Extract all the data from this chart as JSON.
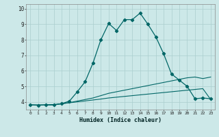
{
  "xlabel": "Humidex (Indice chaleur)",
  "background_color": "#cce8e8",
  "grid_color": "#aacece",
  "line_color": "#006666",
  "xlim": [
    -0.5,
    23.5
  ],
  "ylim": [
    3.5,
    10.3
  ],
  "xtick_vals": [
    0,
    1,
    2,
    3,
    4,
    5,
    6,
    7,
    8,
    9,
    10,
    11,
    12,
    13,
    14,
    15,
    16,
    17,
    18,
    19,
    20,
    21,
    22,
    23
  ],
  "xtick_labels": [
    "0",
    "1",
    "2",
    "3",
    "4",
    "5",
    "6",
    "7",
    "8",
    "9",
    "10",
    "11",
    "12",
    "13",
    "14",
    "15",
    "16",
    "17",
    "18",
    "19",
    "20",
    "21",
    "22",
    "23"
  ],
  "ytick_vals": [
    4,
    5,
    6,
    7,
    8,
    9,
    10
  ],
  "ytick_labels": [
    "4",
    "5",
    "6",
    "7",
    "8",
    "9",
    "10"
  ],
  "line1_x": [
    0,
    1,
    2,
    3,
    4,
    5,
    6,
    7,
    8,
    9,
    10,
    11,
    12,
    13,
    14,
    15,
    16,
    17,
    18,
    19,
    20,
    21,
    22,
    23
  ],
  "line1_y": [
    3.8,
    3.78,
    3.8,
    3.8,
    3.88,
    4.05,
    4.65,
    5.3,
    6.5,
    8.0,
    9.05,
    8.6,
    9.3,
    9.3,
    9.72,
    9.0,
    8.2,
    7.1,
    5.8,
    5.4,
    5.0,
    4.2,
    4.25,
    4.2
  ],
  "line2_x": [
    0,
    1,
    2,
    3,
    4,
    5,
    6,
    7,
    8,
    9,
    10,
    11,
    12,
    13,
    14,
    15,
    16,
    17,
    18,
    19,
    20,
    21,
    22,
    23
  ],
  "line2_y": [
    3.8,
    3.8,
    3.8,
    3.82,
    3.88,
    3.94,
    4.0,
    4.06,
    4.12,
    4.18,
    4.25,
    4.3,
    4.35,
    4.4,
    4.45,
    4.5,
    4.55,
    4.6,
    4.65,
    4.7,
    4.75,
    4.8,
    4.85,
    4.15
  ],
  "line3_x": [
    0,
    1,
    2,
    3,
    4,
    5,
    6,
    7,
    8,
    9,
    10,
    11,
    12,
    13,
    14,
    15,
    16,
    17,
    18,
    19,
    20,
    21,
    22,
    23
  ],
  "line3_y": [
    3.8,
    3.8,
    3.8,
    3.82,
    3.88,
    3.95,
    4.05,
    4.15,
    4.25,
    4.4,
    4.55,
    4.65,
    4.75,
    4.85,
    4.95,
    5.05,
    5.15,
    5.25,
    5.35,
    5.45,
    5.55,
    5.6,
    5.5,
    5.6
  ]
}
